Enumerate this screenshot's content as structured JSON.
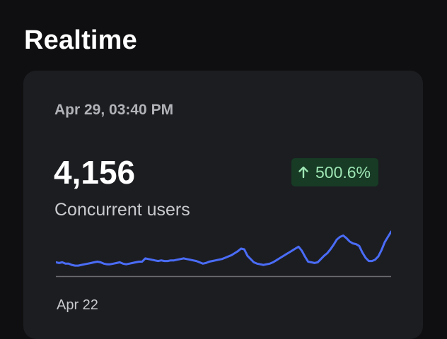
{
  "page": {
    "title": "Realtime"
  },
  "card": {
    "timestamp": "Apr 29, 03:40 PM",
    "value": "4,156",
    "metric_label": "Concurrent users",
    "change": {
      "text": "500.6%",
      "direction": "up",
      "icon": "arrow-up-icon"
    },
    "x_start_label": "Apr 22"
  },
  "colors": {
    "background": "#0f0f11",
    "card": "#1c1d21",
    "line": "#4a6cf7",
    "badge_bg": "#173b25",
    "badge_text": "#9ee6b4",
    "baseline": "#6b6c72"
  },
  "chart_data": {
    "type": "line",
    "title": "",
    "xlabel": "",
    "ylabel": "",
    "x_tick_labels": [
      "Apr 22"
    ],
    "grid": false,
    "series": [
      {
        "values": [
          19,
          18,
          19,
          17,
          17,
          15,
          14,
          14,
          15,
          16,
          17,
          18,
          19,
          20,
          19,
          17,
          16,
          16,
          17,
          18,
          19,
          17,
          16,
          17,
          18,
          19,
          20,
          20,
          25,
          24,
          23,
          22,
          21,
          22,
          21,
          21,
          22,
          22,
          23,
          24,
          25,
          24,
          23,
          22,
          21,
          19,
          17,
          18,
          20,
          21,
          22,
          23,
          24,
          26,
          28,
          30,
          33,
          36,
          40,
          39,
          29,
          24,
          19,
          17,
          16,
          15,
          16,
          17,
          19,
          22,
          25,
          28,
          31,
          34,
          37,
          40,
          43,
          37,
          28,
          20,
          19,
          18,
          19,
          24,
          29,
          33,
          39,
          46,
          54,
          58,
          60,
          56,
          51,
          48,
          47,
          44,
          34,
          26,
          21,
          21,
          23,
          28,
          38,
          50,
          58,
          66
        ]
      }
    ]
  }
}
